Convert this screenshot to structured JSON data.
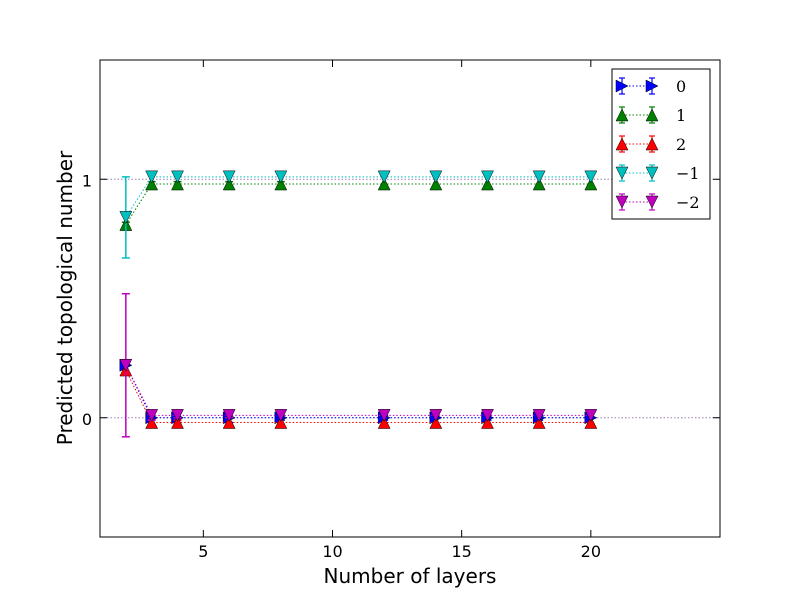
{
  "chart_data": {
    "type": "scatter",
    "title": "",
    "xlabel": "Number of layers",
    "ylabel": "Predicted topological number",
    "xlim": [
      1,
      25
    ],
    "ylim": [
      -0.5,
      1.5
    ],
    "xticks": [
      5,
      10,
      15,
      20
    ],
    "yticks": [
      0,
      1
    ],
    "xtick_labels": [
      "5",
      "10",
      "15",
      "20"
    ],
    "ytick_labels": [
      "0",
      "1"
    ],
    "grid": false,
    "legend_position": "top-right",
    "reference_lines": [
      0,
      1
    ],
    "series": [
      {
        "name": "0",
        "color": "#0000ff",
        "marker": "triangle-right",
        "points": [
          {
            "x": 2,
            "y": 0.22,
            "err": 0.0
          },
          {
            "x": 3,
            "y": 0.0,
            "err": 0.03
          },
          {
            "x": 4,
            "y": 0.0,
            "err": 0.02
          },
          {
            "x": 6,
            "y": 0.0,
            "err": 0.02
          },
          {
            "x": 8,
            "y": 0.0,
            "err": 0.01
          },
          {
            "x": 12,
            "y": 0.0,
            "err": 0.01
          },
          {
            "x": 14,
            "y": 0.0,
            "err": 0.0
          },
          {
            "x": 16,
            "y": 0.0,
            "err": 0.01
          },
          {
            "x": 18,
            "y": 0.0,
            "err": 0.01
          },
          {
            "x": 20,
            "y": 0.0,
            "err": 0.0
          }
        ]
      },
      {
        "name": "1",
        "color": "#008000",
        "marker": "triangle-up",
        "points": [
          {
            "x": 2,
            "y": 0.81,
            "err": 0.01
          },
          {
            "x": 3,
            "y": 0.98,
            "err": 0.01
          },
          {
            "x": 4,
            "y": 0.98,
            "err": 0.01
          },
          {
            "x": 6,
            "y": 0.98,
            "err": 0.01
          },
          {
            "x": 8,
            "y": 0.98,
            "err": 0.01
          },
          {
            "x": 12,
            "y": 0.98,
            "err": 0.0
          },
          {
            "x": 14,
            "y": 0.98,
            "err": 0.0
          },
          {
            "x": 16,
            "y": 0.98,
            "err": 0.0
          },
          {
            "x": 18,
            "y": 0.98,
            "err": 0.0
          },
          {
            "x": 20,
            "y": 0.98,
            "err": 0.0
          }
        ]
      },
      {
        "name": "2",
        "color": "#ff0000",
        "marker": "triangle-up",
        "points": [
          {
            "x": 2,
            "y": 0.2,
            "err": 0.0
          },
          {
            "x": 3,
            "y": -0.02,
            "err": 0.01
          },
          {
            "x": 4,
            "y": -0.02,
            "err": 0.01
          },
          {
            "x": 6,
            "y": -0.02,
            "err": 0.02
          },
          {
            "x": 8,
            "y": -0.02,
            "err": 0.0
          },
          {
            "x": 12,
            "y": -0.02,
            "err": 0.0
          },
          {
            "x": 14,
            "y": -0.02,
            "err": 0.0
          },
          {
            "x": 16,
            "y": -0.02,
            "err": 0.0
          },
          {
            "x": 18,
            "y": -0.02,
            "err": 0.0
          },
          {
            "x": 20,
            "y": -0.02,
            "err": 0.0
          }
        ]
      },
      {
        "name": "−1",
        "color": "#00bfbf",
        "marker": "triangle-down",
        "points": [
          {
            "x": 2,
            "y": 0.84,
            "err": 0.17
          },
          {
            "x": 3,
            "y": 1.01,
            "err": 0.0
          },
          {
            "x": 4,
            "y": 1.01,
            "err": 0.0
          },
          {
            "x": 6,
            "y": 1.01,
            "err": 0.0
          },
          {
            "x": 8,
            "y": 1.01,
            "err": 0.0
          },
          {
            "x": 12,
            "y": 1.01,
            "err": 0.0
          },
          {
            "x": 14,
            "y": 1.01,
            "err": 0.0
          },
          {
            "x": 16,
            "y": 1.01,
            "err": 0.0
          },
          {
            "x": 18,
            "y": 1.01,
            "err": 0.0
          },
          {
            "x": 20,
            "y": 1.01,
            "err": 0.0
          }
        ]
      },
      {
        "name": "−2",
        "color": "#bf00bf",
        "marker": "triangle-down",
        "points": [
          {
            "x": 2,
            "y": 0.22,
            "err": 0.3
          },
          {
            "x": 3,
            "y": 0.01,
            "err": 0.02
          },
          {
            "x": 4,
            "y": 0.01,
            "err": 0.01
          },
          {
            "x": 6,
            "y": 0.01,
            "err": 0.01
          },
          {
            "x": 8,
            "y": 0.01,
            "err": 0.0
          },
          {
            "x": 12,
            "y": 0.01,
            "err": 0.0
          },
          {
            "x": 14,
            "y": 0.01,
            "err": 0.0
          },
          {
            "x": 16,
            "y": 0.01,
            "err": 0.0
          },
          {
            "x": 18,
            "y": 0.01,
            "err": 0.0
          },
          {
            "x": 20,
            "y": 0.01,
            "err": 0.0
          }
        ]
      }
    ]
  }
}
